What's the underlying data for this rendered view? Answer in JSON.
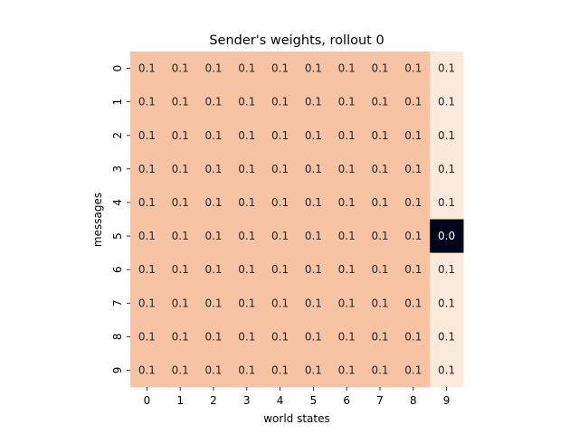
{
  "chart_data": {
    "type": "heatmap",
    "title": "Sender's weights, rollout 0",
    "xlabel": "world states",
    "ylabel": "messages",
    "x_tick_labels": [
      "0",
      "1",
      "2",
      "3",
      "4",
      "5",
      "6",
      "7",
      "8",
      "9"
    ],
    "y_tick_labels": [
      "0",
      "1",
      "2",
      "3",
      "4",
      "5",
      "6",
      "7",
      "8",
      "9"
    ],
    "values": [
      [
        0.1,
        0.1,
        0.1,
        0.1,
        0.1,
        0.1,
        0.1,
        0.1,
        0.1,
        0.1
      ],
      [
        0.1,
        0.1,
        0.1,
        0.1,
        0.1,
        0.1,
        0.1,
        0.1,
        0.1,
        0.1
      ],
      [
        0.1,
        0.1,
        0.1,
        0.1,
        0.1,
        0.1,
        0.1,
        0.1,
        0.1,
        0.1
      ],
      [
        0.1,
        0.1,
        0.1,
        0.1,
        0.1,
        0.1,
        0.1,
        0.1,
        0.1,
        0.1
      ],
      [
        0.1,
        0.1,
        0.1,
        0.1,
        0.1,
        0.1,
        0.1,
        0.1,
        0.1,
        0.1
      ],
      [
        0.1,
        0.1,
        0.1,
        0.1,
        0.1,
        0.1,
        0.1,
        0.1,
        0.1,
        0.0
      ],
      [
        0.1,
        0.1,
        0.1,
        0.1,
        0.1,
        0.1,
        0.1,
        0.1,
        0.1,
        0.1
      ],
      [
        0.1,
        0.1,
        0.1,
        0.1,
        0.1,
        0.1,
        0.1,
        0.1,
        0.1,
        0.1
      ],
      [
        0.1,
        0.1,
        0.1,
        0.1,
        0.1,
        0.1,
        0.1,
        0.1,
        0.1,
        0.1
      ],
      [
        0.1,
        0.1,
        0.1,
        0.1,
        0.1,
        0.1,
        0.1,
        0.1,
        0.1,
        0.1
      ]
    ],
    "cell_labels": [
      [
        "0.1",
        "0.1",
        "0.1",
        "0.1",
        "0.1",
        "0.1",
        "0.1",
        "0.1",
        "0.1",
        "0.1"
      ],
      [
        "0.1",
        "0.1",
        "0.1",
        "0.1",
        "0.1",
        "0.1",
        "0.1",
        "0.1",
        "0.1",
        "0.1"
      ],
      [
        "0.1",
        "0.1",
        "0.1",
        "0.1",
        "0.1",
        "0.1",
        "0.1",
        "0.1",
        "0.1",
        "0.1"
      ],
      [
        "0.1",
        "0.1",
        "0.1",
        "0.1",
        "0.1",
        "0.1",
        "0.1",
        "0.1",
        "0.1",
        "0.1"
      ],
      [
        "0.1",
        "0.1",
        "0.1",
        "0.1",
        "0.1",
        "0.1",
        "0.1",
        "0.1",
        "0.1",
        "0.1"
      ],
      [
        "0.1",
        "0.1",
        "0.1",
        "0.1",
        "0.1",
        "0.1",
        "0.1",
        "0.1",
        "0.1",
        "0.0"
      ],
      [
        "0.1",
        "0.1",
        "0.1",
        "0.1",
        "0.1",
        "0.1",
        "0.1",
        "0.1",
        "0.1",
        "0.1"
      ],
      [
        "0.1",
        "0.1",
        "0.1",
        "0.1",
        "0.1",
        "0.1",
        "0.1",
        "0.1",
        "0.1",
        "0.1"
      ],
      [
        "0.1",
        "0.1",
        "0.1",
        "0.1",
        "0.1",
        "0.1",
        "0.1",
        "0.1",
        "0.1",
        "0.1"
      ],
      [
        "0.1",
        "0.1",
        "0.1",
        "0.1",
        "0.1",
        "0.1",
        "0.1",
        "0.1",
        "0.1",
        "0.1"
      ]
    ],
    "colorbar": false,
    "grid": false,
    "colors": {
      "columns_0_to_8": "#f6c4a4",
      "column_9": "#fbeadc",
      "cell_5_9": "#03051a",
      "text_light_cell": "#262626",
      "text_dark_cell": "#ffffff"
    }
  }
}
